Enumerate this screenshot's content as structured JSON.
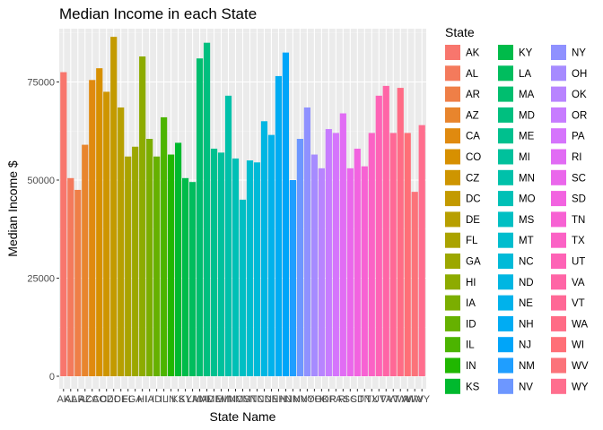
{
  "chart_data": {
    "type": "bar",
    "title": "Median Income in each State",
    "xlabel": "State Name",
    "ylabel": "Median Income $",
    "ylim": [
      0,
      90000
    ],
    "yticks": [
      0,
      25000,
      50000,
      75000
    ],
    "ytick_labels": [
      "0",
      "25000",
      "50000",
      "75000"
    ],
    "grid": true,
    "legend_title": "State",
    "legend_position": "right",
    "categories": [
      "AK",
      "AL",
      "AR",
      "AZ",
      "CA",
      "CO",
      "CZ",
      "DC",
      "DE",
      "FL",
      "GA",
      "HI",
      "IA",
      "ID",
      "IL",
      "IN",
      "KS",
      "KY",
      "LA",
      "MA",
      "MD",
      "ME",
      "MI",
      "MN",
      "MO",
      "MS",
      "MT",
      "NC",
      "ND",
      "NE",
      "NH",
      "NJ",
      "NM",
      "NV",
      "NY",
      "OH",
      "OK",
      "OR",
      "PA",
      "RI",
      "SC",
      "SD",
      "TN",
      "TX",
      "UT",
      "VA",
      "VT",
      "WA",
      "WI",
      "WV",
      "WY"
    ],
    "values": [
      77500,
      50500,
      47500,
      59000,
      75500,
      78500,
      72500,
      86500,
      68500,
      56000,
      58500,
      81500,
      60500,
      56000,
      66000,
      56500,
      59500,
      50500,
      49500,
      81000,
      85000,
      58000,
      57000,
      71500,
      55500,
      45000,
      55000,
      54500,
      65000,
      61500,
      76500,
      82500,
      50000,
      60500,
      68500,
      56500,
      53000,
      63000,
      62000,
      67000,
      53000,
      58000,
      53500,
      62000,
      71500,
      74000,
      62000,
      73500,
      62000,
      47000,
      64000
    ],
    "colors": [
      "#F8766D",
      "#F47A5C",
      "#EF7F47",
      "#E8852D",
      "#E08A0F",
      "#D79000",
      "#CE9500",
      "#C39A00",
      "#B79F00",
      "#AAA300",
      "#9CA700",
      "#8DAB00",
      "#7BAE00",
      "#66B100",
      "#4CB400",
      "#20B700",
      "#00B92E",
      "#00BB4A",
      "#00BD5E",
      "#00BE6F",
      "#00BF7F",
      "#00C08E",
      "#00C19C",
      "#00C1AA",
      "#00C0B6",
      "#00BFC3",
      "#00BDCE",
      "#00BAD8",
      "#00B6E2",
      "#00B2EB",
      "#00ACF3",
      "#00A5F9",
      "#1F9EFF",
      "#6D97FF",
      "#8F91FF",
      "#A68BFF",
      "#B884FF",
      "#C77CFF",
      "#D574FC",
      "#E16CF4",
      "#EA67EB",
      "#F263E0",
      "#F762D3",
      "#FB62C5",
      "#FE63B6",
      "#FF65A6",
      "#FF6896",
      "#FF6C86",
      "#FF6F77",
      "#FB737A",
      "#FF6E8E"
    ]
  }
}
